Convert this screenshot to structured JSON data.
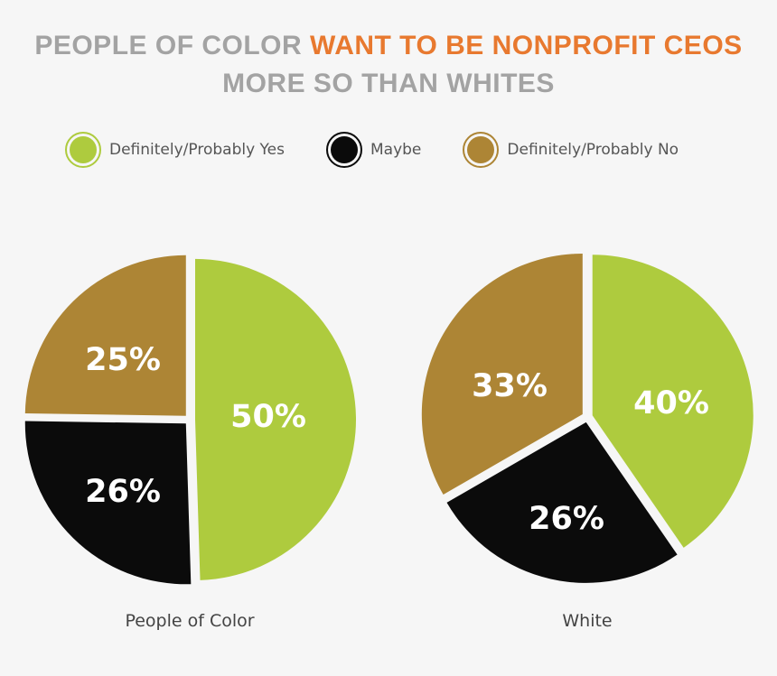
{
  "header": {
    "title_line1_part1": "PEOPLE OF COLOR ",
    "title_line1_part2": "WANT TO BE NONPROFIT CEOS",
    "title_line2": "MORE SO THAN WHITES"
  },
  "colors": {
    "title_gray": "#a3a3a3",
    "accent_orange": "#e8792f",
    "yes": "#aecb3e",
    "maybe": "#0b0b0b",
    "no": "#ad8535"
  },
  "legend": [
    {
      "label": "Definitely/Probably Yes",
      "color": "#aecb3e"
    },
    {
      "label": "Maybe",
      "color": "#0b0b0b"
    },
    {
      "label": "Definitely/Probably No",
      "color": "#ad8535"
    }
  ],
  "chart_data": [
    {
      "type": "pie",
      "title": "People of Color",
      "slices": [
        {
          "category": "Definitely/Probably Yes",
          "value": 50,
          "label": "50%",
          "color": "#aecb3e"
        },
        {
          "category": "Maybe",
          "value": 26,
          "label": "26%",
          "color": "#0b0b0b"
        },
        {
          "category": "Definitely/Probably No",
          "value": 25,
          "label": "25%",
          "color": "#ad8535"
        }
      ]
    },
    {
      "type": "pie",
      "title": "White",
      "slices": [
        {
          "category": "Definitely/Probably Yes",
          "value": 40,
          "label": "40%",
          "color": "#aecb3e"
        },
        {
          "category": "Maybe",
          "value": 26,
          "label": "26%",
          "color": "#0b0b0b"
        },
        {
          "category": "Definitely/Probably No",
          "value": 33,
          "label": "33%",
          "color": "#ad8535"
        }
      ]
    }
  ]
}
